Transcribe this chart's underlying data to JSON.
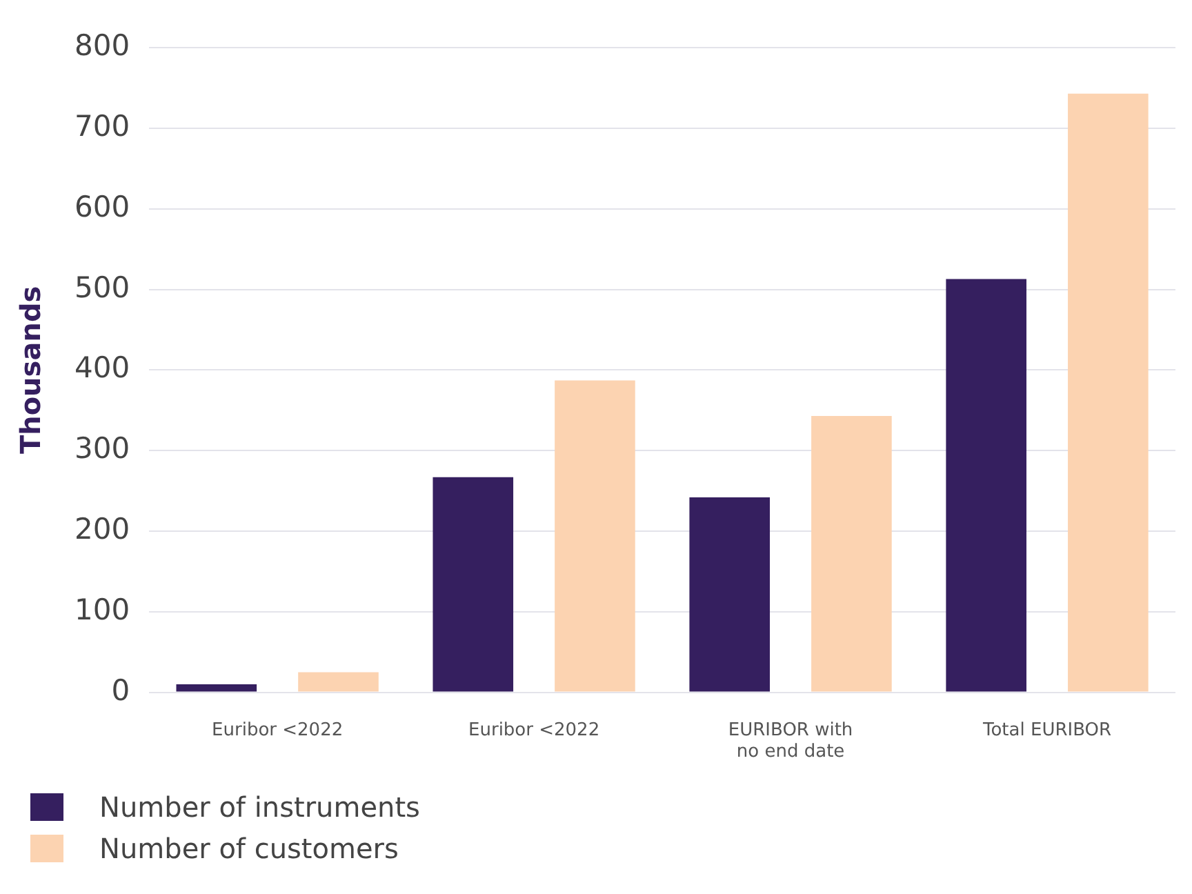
{
  "chart_data": {
    "type": "bar",
    "ylabel": "Thousands",
    "categories": [
      "Euribor <2022",
      "Euribor <2022",
      "EURIBOR with no end date",
      "Total EURIBOR"
    ],
    "series": [
      {
        "name": "Number of instruments",
        "color": "#351f5f",
        "values": [
          10,
          267,
          242,
          513
        ]
      },
      {
        "name": "Number of customers",
        "color": "#fcd3b1",
        "values": [
          25,
          387,
          343,
          743
        ]
      }
    ],
    "ylim": [
      0,
      800
    ],
    "yticks": [
      0,
      100,
      200,
      300,
      400,
      500,
      600,
      700,
      800
    ],
    "grid": "y",
    "legend": "bottom left"
  }
}
